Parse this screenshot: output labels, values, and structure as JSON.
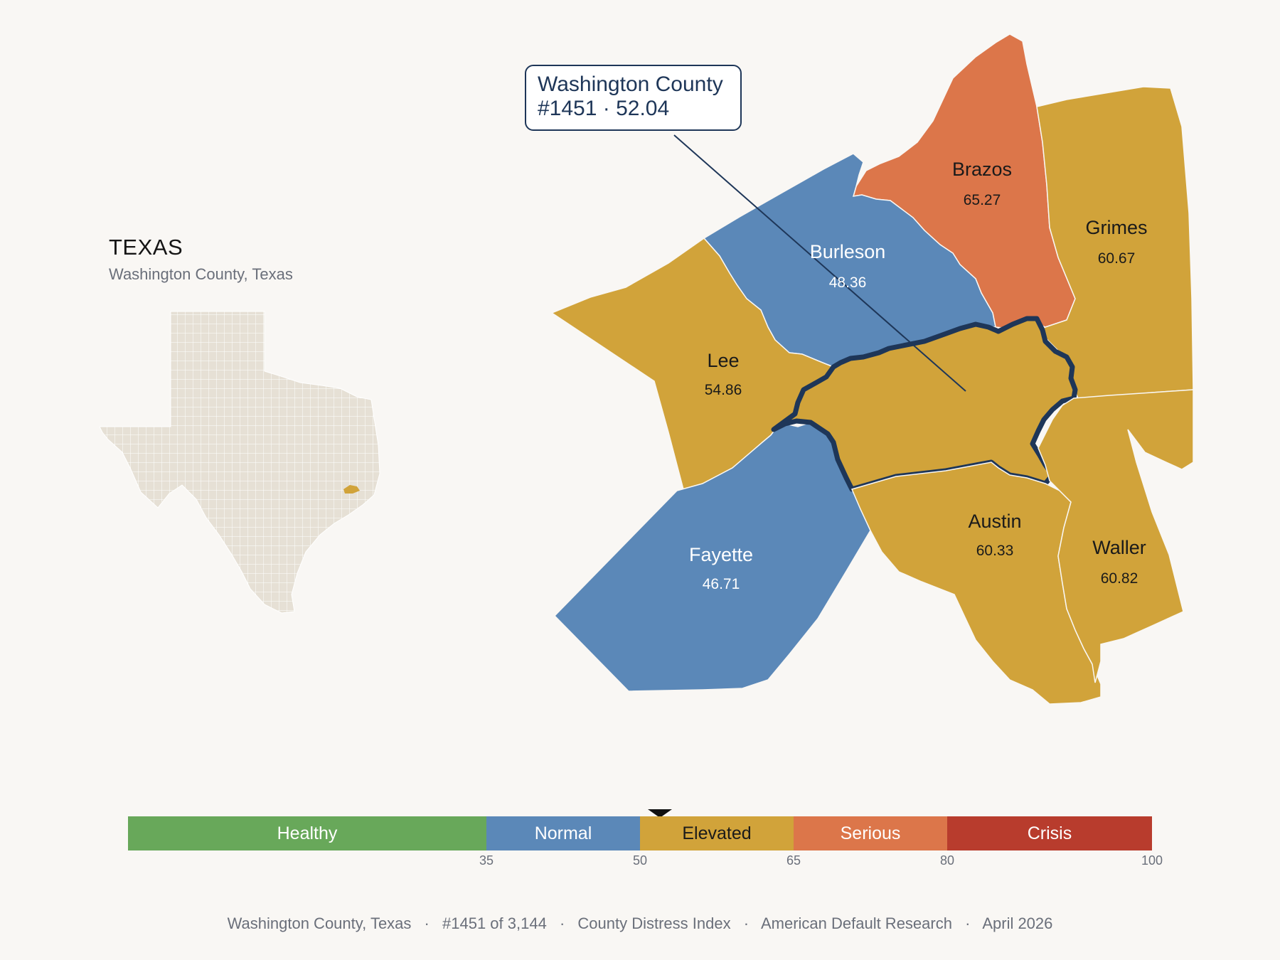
{
  "inset": {
    "title": "TEXAS",
    "subtitle": "Washington County, Texas",
    "highlight_color": "#d1a33a",
    "base_color": "#e6e0d5"
  },
  "callout": {
    "line1": "Washington County",
    "line2": "#1451 · 52.04"
  },
  "counties": [
    {
      "name": "Washington",
      "score": 52.04,
      "category": "Elevated",
      "highlighted": true
    },
    {
      "name": "Brazos",
      "score": "65.27",
      "category": "Serious"
    },
    {
      "name": "Grimes",
      "score": "60.67",
      "category": "Elevated"
    },
    {
      "name": "Burleson",
      "score": "48.36",
      "category": "Normal"
    },
    {
      "name": "Lee",
      "score": "54.86",
      "category": "Elevated"
    },
    {
      "name": "Fayette",
      "score": "46.71",
      "category": "Normal"
    },
    {
      "name": "Austin",
      "score": "60.33",
      "category": "Elevated"
    },
    {
      "name": "Waller",
      "score": "60.82",
      "category": "Elevated"
    }
  ],
  "scale": {
    "min": 0,
    "max": 100,
    "marker_value": 52.04,
    "segments": [
      {
        "label": "Healthy",
        "from": 0,
        "to": 35,
        "color": "#68a85a"
      },
      {
        "label": "Normal",
        "from": 35,
        "to": 50,
        "color": "#5b88b8"
      },
      {
        "label": "Elevated",
        "from": 50,
        "to": 65,
        "color": "#d1a33a"
      },
      {
        "label": "Serious",
        "from": 65,
        "to": 80,
        "color": "#dc764a"
      },
      {
        "label": "Crisis",
        "from": 80,
        "to": 100,
        "color": "#b83c2d"
      }
    ],
    "ticks": [
      "35",
      "50",
      "65",
      "80",
      "100"
    ]
  },
  "footer": {
    "location": "Washington County, Texas",
    "rank": "#1451 of 3,144",
    "index": "County Distress Index",
    "source": "American Default Research",
    "date": "April 2026",
    "separator": "·"
  },
  "colors": {
    "background": "#f9f7f4",
    "outline": "#1e3658"
  }
}
